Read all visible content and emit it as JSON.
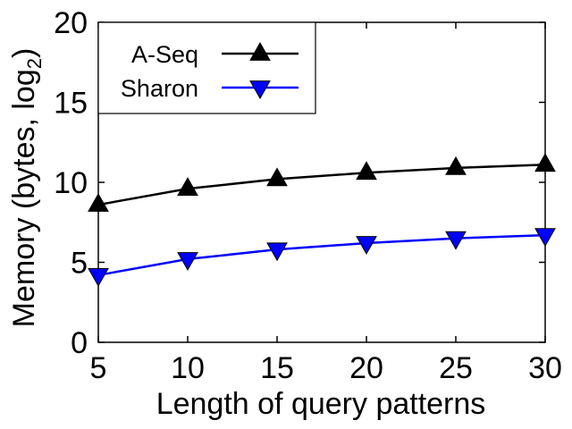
{
  "chart_data": {
    "type": "line",
    "title": "",
    "xlabel": "Length of query patterns",
    "ylabel": {
      "main": "Memory (bytes, log",
      "sub": "2",
      "close": ")"
    },
    "x": [
      5,
      10,
      15,
      20,
      25,
      30
    ],
    "xlim": [
      5,
      30
    ],
    "ylim": [
      0,
      20
    ],
    "xticks": [
      "5",
      "10",
      "15",
      "20",
      "25",
      "30"
    ],
    "yticks": [
      "0",
      "5",
      "10",
      "15",
      "20"
    ],
    "grid": false,
    "legend_position": "top-left",
    "series": [
      {
        "name": "A-Seq",
        "color": "#000000",
        "marker": "triangle-up",
        "values": [
          8.6,
          9.6,
          10.2,
          10.6,
          10.9,
          11.1
        ]
      },
      {
        "name": "Sharon",
        "color": "#0000ff",
        "marker": "triangle-down",
        "values": [
          4.2,
          5.2,
          5.8,
          6.2,
          6.5,
          6.7
        ]
      }
    ]
  }
}
